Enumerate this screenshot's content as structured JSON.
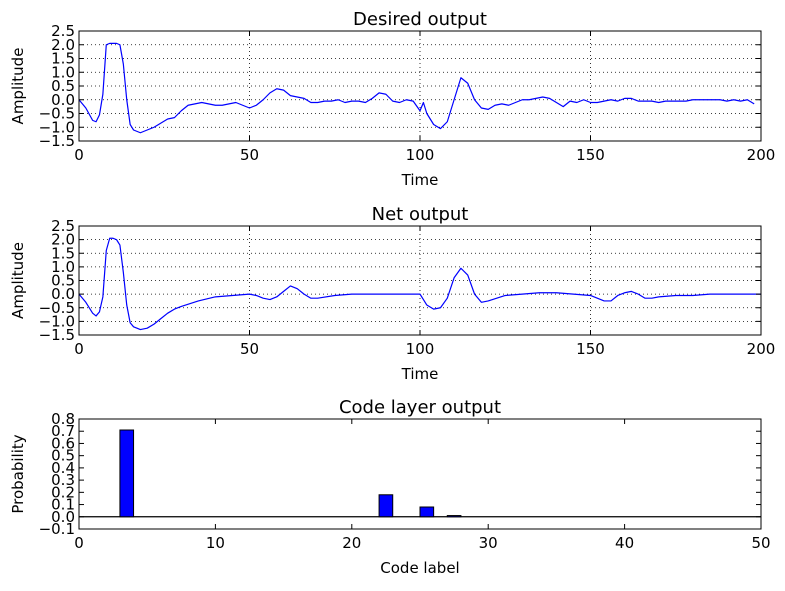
{
  "chart_data": [
    {
      "type": "line",
      "title": "Desired output",
      "xlabel": "Time",
      "ylabel": "Amplitude",
      "xlim": [
        0,
        200
      ],
      "ylim": [
        -1.5,
        2.5
      ],
      "xticks": [
        0,
        50,
        100,
        150,
        200
      ],
      "yticks": [
        -1.5,
        -1.0,
        -0.5,
        0.0,
        0.5,
        1.0,
        1.5,
        2.0,
        2.5
      ],
      "xtick_labels": [
        "0",
        "50",
        "100",
        "150",
        "200"
      ],
      "ytick_labels": [
        "−1.5",
        "−1.0",
        "−0.5",
        "0.0",
        "0.5",
        "1.0",
        "1.5",
        "2.0",
        "2.5"
      ],
      "grid": true,
      "color": "#0000ff",
      "series": [
        {
          "x": [
            0,
            2,
            4,
            5,
            6,
            7,
            8,
            9,
            10,
            11,
            12,
            13,
            14,
            15,
            16,
            18,
            20,
            22,
            24,
            26,
            28,
            30,
            32,
            34,
            36,
            38,
            40,
            42,
            44,
            46,
            47,
            48,
            50,
            52,
            54,
            56,
            58,
            60,
            62,
            64,
            66,
            68,
            70,
            72,
            74,
            76,
            78,
            80,
            82,
            84,
            86,
            88,
            90,
            92,
            94,
            96,
            98,
            100,
            101,
            102,
            104,
            106,
            108,
            110,
            112,
            114,
            116,
            118,
            120,
            122,
            124,
            126,
            128,
            130,
            132,
            134,
            136,
            138,
            140,
            142,
            144,
            146,
            148,
            150,
            152,
            154,
            156,
            158,
            160,
            162,
            164,
            166,
            168,
            170,
            172,
            174,
            176,
            178,
            180,
            182,
            184,
            186,
            188,
            190,
            192,
            194,
            196,
            198
          ],
          "y": [
            0.0,
            -0.3,
            -0.75,
            -0.8,
            -0.55,
            0.2,
            2.0,
            2.05,
            2.05,
            2.05,
            2.0,
            1.3,
            0.0,
            -0.9,
            -1.1,
            -1.2,
            -1.1,
            -1.0,
            -0.85,
            -0.7,
            -0.65,
            -0.4,
            -0.2,
            -0.15,
            -0.1,
            -0.15,
            -0.2,
            -0.2,
            -0.15,
            -0.1,
            -0.15,
            -0.2,
            -0.3,
            -0.2,
            0.0,
            0.25,
            0.4,
            0.35,
            0.15,
            0.1,
            0.05,
            -0.1,
            -0.1,
            -0.05,
            -0.05,
            0.0,
            -0.1,
            -0.05,
            -0.05,
            -0.1,
            0.05,
            0.25,
            0.2,
            -0.05,
            -0.1,
            0.0,
            -0.05,
            -0.4,
            -0.1,
            -0.5,
            -0.9,
            -1.05,
            -0.8,
            0.0,
            0.8,
            0.6,
            0.0,
            -0.3,
            -0.35,
            -0.2,
            -0.15,
            -0.2,
            -0.1,
            0.0,
            0.0,
            0.05,
            0.1,
            0.05,
            -0.1,
            -0.25,
            -0.05,
            -0.1,
            0.0,
            -0.1,
            -0.1,
            -0.05,
            0.0,
            -0.05,
            0.05,
            0.05,
            -0.05,
            -0.05,
            -0.05,
            -0.1,
            -0.05,
            -0.05,
            -0.05,
            -0.05,
            0.0,
            0.0,
            0.0,
            0.0,
            0.0,
            -0.05,
            0.0,
            -0.05,
            0.0,
            -0.15
          ]
        }
      ]
    },
    {
      "type": "line",
      "title": "Net output",
      "xlabel": "Time",
      "ylabel": "Amplitude",
      "xlim": [
        0,
        200
      ],
      "ylim": [
        -1.5,
        2.5
      ],
      "xticks": [
        0,
        50,
        100,
        150,
        200
      ],
      "yticks": [
        -1.5,
        -1.0,
        -0.5,
        0.0,
        0.5,
        1.0,
        1.5,
        2.0,
        2.5
      ],
      "xtick_labels": [
        "0",
        "50",
        "100",
        "150",
        "200"
      ],
      "ytick_labels": [
        "−1.5",
        "−1.0",
        "−0.5",
        "0.0",
        "0.5",
        "1.0",
        "1.5",
        "2.0",
        "2.5"
      ],
      "grid": true,
      "color": "#0000ff",
      "series": [
        {
          "x": [
            0,
            2,
            4,
            5,
            6,
            7,
            8,
            9,
            10,
            11,
            12,
            13,
            14,
            15,
            16,
            18,
            20,
            22,
            24,
            26,
            28,
            30,
            35,
            40,
            45,
            50,
            52,
            54,
            56,
            58,
            60,
            62,
            64,
            66,
            68,
            70,
            75,
            80,
            85,
            90,
            95,
            100,
            101,
            102,
            104,
            106,
            108,
            110,
            112,
            114,
            116,
            118,
            120,
            125,
            130,
            135,
            140,
            145,
            150,
            152,
            154,
            156,
            158,
            160,
            162,
            164,
            166,
            168,
            170,
            175,
            180,
            185,
            190,
            195,
            200
          ],
          "y": [
            0.0,
            -0.3,
            -0.7,
            -0.8,
            -0.65,
            -0.1,
            1.6,
            2.05,
            2.05,
            2.0,
            1.8,
            0.8,
            -0.4,
            -1.05,
            -1.2,
            -1.3,
            -1.25,
            -1.1,
            -0.9,
            -0.7,
            -0.55,
            -0.45,
            -0.25,
            -0.1,
            -0.05,
            0.0,
            -0.05,
            -0.15,
            -0.2,
            -0.1,
            0.1,
            0.3,
            0.2,
            0.0,
            -0.15,
            -0.15,
            -0.05,
            0.0,
            0.0,
            0.0,
            0.0,
            0.0,
            -0.2,
            -0.4,
            -0.55,
            -0.5,
            -0.15,
            0.6,
            0.95,
            0.7,
            0.0,
            -0.3,
            -0.25,
            -0.05,
            0.0,
            0.05,
            0.05,
            0.0,
            -0.05,
            -0.15,
            -0.25,
            -0.25,
            -0.05,
            0.05,
            0.1,
            0.0,
            -0.15,
            -0.15,
            -0.1,
            -0.05,
            -0.05,
            0.0,
            0.0,
            0.0,
            0.0
          ]
        }
      ]
    },
    {
      "type": "bar",
      "title": "Code layer output",
      "xlabel": "Code label",
      "ylabel": "Probability",
      "xlim": [
        0,
        50
      ],
      "ylim": [
        -0.1,
        0.8
      ],
      "xticks": [
        0,
        10,
        20,
        30,
        40,
        50
      ],
      "yticks": [
        -0.1,
        0.0,
        0.1,
        0.2,
        0.3,
        0.4,
        0.5,
        0.6,
        0.7,
        0.8
      ],
      "xtick_labels": [
        "0",
        "10",
        "20",
        "30",
        "40",
        "50"
      ],
      "ytick_labels": [
        "−0.1",
        "0.0",
        "0.1",
        "0.2",
        "0.3",
        "0.4",
        "0.5",
        "0.6",
        "0.7",
        "0.8"
      ],
      "grid": false,
      "color": "#0000ff",
      "bar_width": 1.0,
      "bar_positions": [
        3,
        22,
        25,
        27
      ],
      "values": [
        0.71,
        0.18,
        0.08,
        0.01
      ]
    }
  ]
}
